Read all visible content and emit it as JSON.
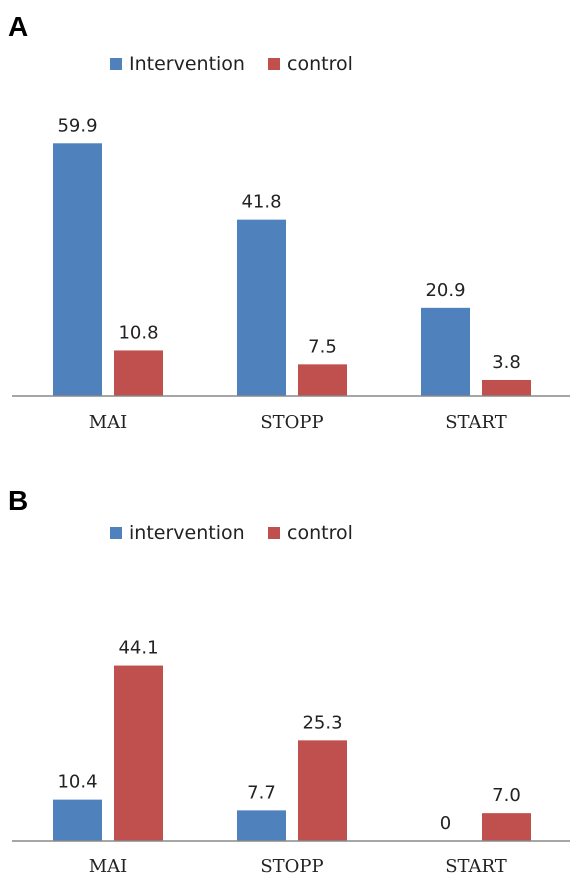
{
  "chart_data": [
    {
      "panel_label": "A",
      "type": "bar",
      "categories": [
        "MAI",
        "STOPP",
        "START"
      ],
      "series": [
        {
          "name": "Intervention",
          "values": [
            59.9,
            41.8,
            20.9
          ],
          "labels": [
            "59.9",
            "41.8",
            "20.9"
          ]
        },
        {
          "name": "control",
          "values": [
            10.8,
            7.5,
            3.8
          ],
          "labels": [
            "10.8",
            "7.5",
            "3.8"
          ]
        }
      ],
      "ylim": [
        0,
        64
      ],
      "grid": false,
      "legend_position": "top"
    },
    {
      "panel_label": "B",
      "type": "bar",
      "categories": [
        "MAI",
        "STOPP",
        "START"
      ],
      "series": [
        {
          "name": "intervention",
          "values": [
            10.4,
            7.7,
            0
          ],
          "labels": [
            "10.4",
            "7.7",
            "0"
          ]
        },
        {
          "name": "control",
          "values": [
            44.1,
            25.3,
            7.0
          ],
          "labels": [
            "44.1",
            "25.3",
            "7.0"
          ]
        }
      ],
      "ylim": [
        0,
        46
      ],
      "grid": false,
      "legend_position": "top"
    }
  ],
  "colors": {
    "intervention": "#4F81BD",
    "control": "#C0504D",
    "axis": "#888888"
  }
}
